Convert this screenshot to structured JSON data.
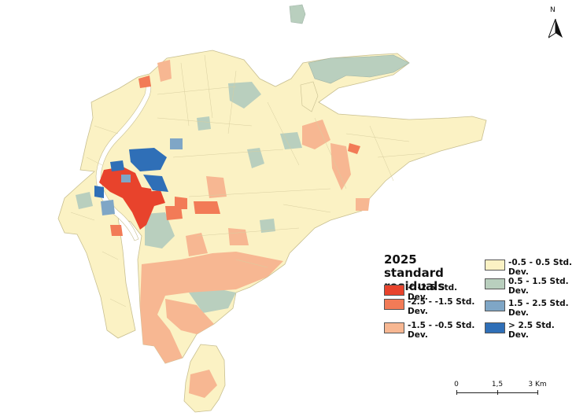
{
  "legend": {
    "title": "2025 standard residuals",
    "items": [
      {
        "label": "< -2.5 Std. Dev.",
        "color": "#e8432c"
      },
      {
        "label": "-2.5 - -1.5 Std. Dev.",
        "color": "#f27b57"
      },
      {
        "label": "-1.5 - -0.5 Std. Dev.",
        "color": "#f7b792"
      },
      {
        "label": "-0.5 - 0.5 Std. Dev.",
        "color": "#fbf2c4"
      },
      {
        "label": "0.5 - 1.5 Std. Dev.",
        "color": "#b9cfbe"
      },
      {
        "label": "1.5 - 2.5 Std. Dev.",
        "color": "#7fa6c6"
      },
      {
        "label": "> 2.5 Std. Dev.",
        "color": "#2f6fb7"
      }
    ]
  },
  "north_arrow": {
    "letter": "N",
    "icon": "north-arrow-icon"
  },
  "scale_bar": {
    "labels": [
      "0",
      "1,5",
      "3 Km"
    ]
  },
  "map": {
    "river_color": "#ffffff",
    "boundary_color": "#d8cfa0"
  }
}
